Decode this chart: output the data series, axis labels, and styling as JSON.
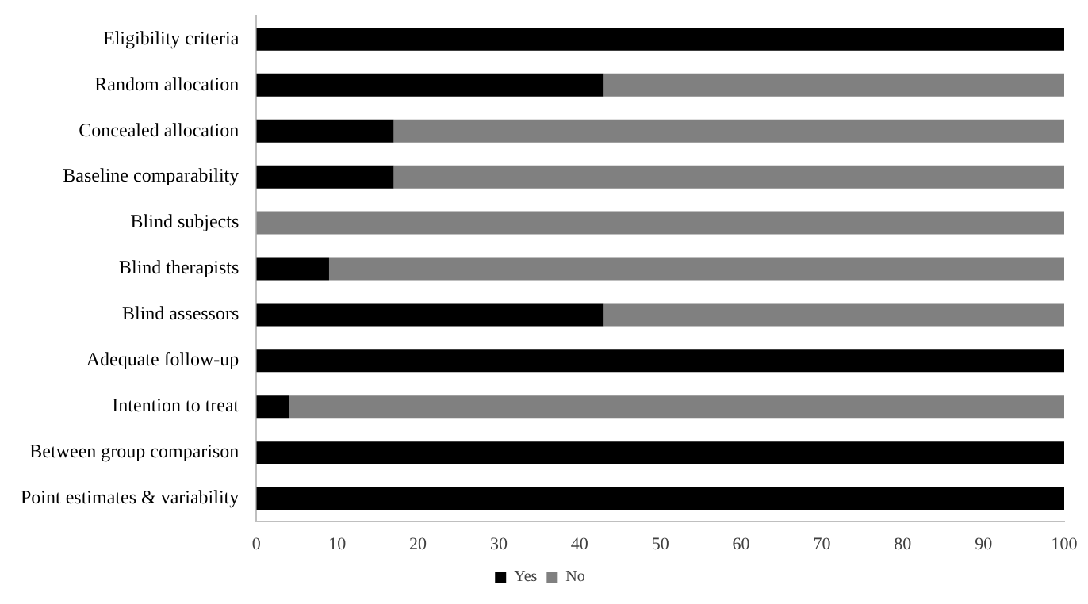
{
  "chart_data": {
    "type": "bar",
    "orientation": "horizontal",
    "stacked": true,
    "categories": [
      "Eligibility criteria",
      "Random allocation",
      "Concealed allocation",
      "Baseline comparability",
      "Blind subjects",
      "Blind therapists",
      "Blind assessors",
      "Adequate follow-up",
      "Intention to treat",
      "Between group comparison",
      "Point estimates & variability"
    ],
    "series": [
      {
        "name": "Yes",
        "color": "#000000",
        "values": [
          100,
          43,
          17,
          17,
          0,
          9,
          43,
          100,
          4,
          100,
          100
        ]
      },
      {
        "name": "No",
        "color": "#808080",
        "values": [
          0,
          57,
          83,
          83,
          100,
          91,
          57,
          0,
          96,
          0,
          0
        ]
      }
    ],
    "xlim": [
      0,
      100
    ],
    "xticks": [
      0,
      10,
      20,
      30,
      40,
      50,
      60,
      70,
      80,
      90,
      100
    ],
    "grid": false,
    "legend": "bottom"
  }
}
